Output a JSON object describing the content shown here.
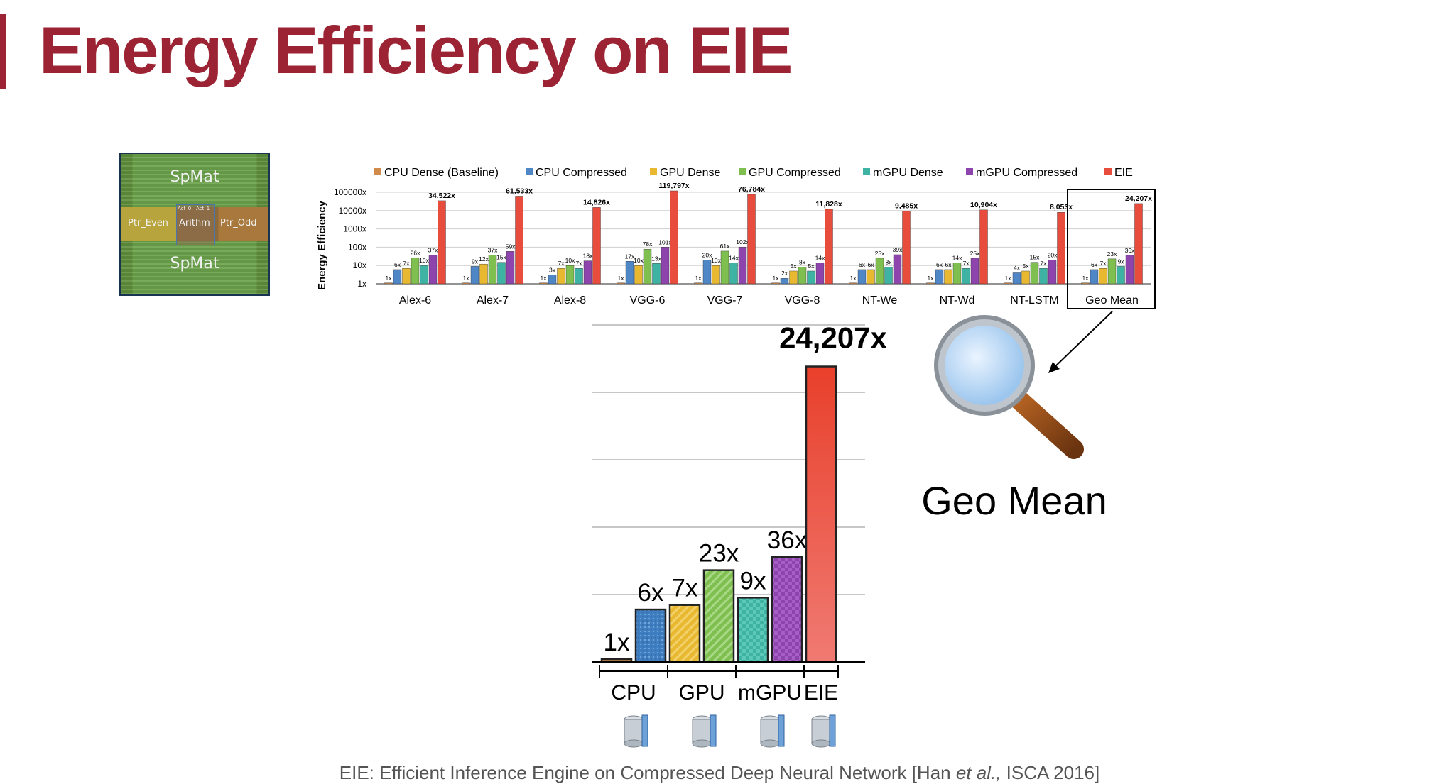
{
  "slide": {
    "title": "Energy Efficiency on EIE",
    "footer": {
      "prefix": "EIE: Efficient Inference Engine on Compressed Deep Neural Network [Han ",
      "italic": "et al.,",
      "suffix": " ISCA 2016]"
    },
    "chip_labels": {
      "spmat_top": "SpMat",
      "spmat_bottom": "SpMat",
      "ptr_even": "Ptr_Even",
      "arith": "Arithm",
      "ptr_odd": "Ptr_Odd",
      "act0": "Act_0",
      "act1": "Act_1"
    },
    "zoom_label": "Geo Mean"
  },
  "colors": {
    "accent": "#9b2333",
    "cpu_dense": "#d08a4a",
    "cpu_compressed": "#4f86c6",
    "gpu_dense": "#e8b930",
    "gpu_compressed": "#7fbf4f",
    "mgpu_dense": "#3fb3a3",
    "mgpu_compressed": "#8e44ad",
    "eie": "#e74c3c"
  },
  "chart_data": [
    {
      "type": "bar",
      "ylabel": "Energy Efficiency",
      "scale": "log",
      "yticks": [
        "1x",
        "10x",
        "100x",
        "1000x",
        "10000x",
        "100000x"
      ],
      "ylim": [
        1,
        100000
      ],
      "legend_position": "top",
      "categories": [
        "Alex-6",
        "Alex-7",
        "Alex-8",
        "VGG-6",
        "VGG-7",
        "VGG-8",
        "NT-We",
        "NT-Wd",
        "NT-LSTM",
        "Geo Mean"
      ],
      "series": [
        {
          "name": "CPU Dense (Baseline)",
          "color_key": "cpu_dense",
          "values": [
            1,
            1,
            1,
            1,
            1,
            1,
            1,
            1,
            1,
            1
          ],
          "labels": [
            "1x",
            "1x",
            "1x",
            "1x",
            "1x",
            "1x",
            "1x",
            "1x",
            "1x",
            "1x"
          ]
        },
        {
          "name": "CPU Compressed",
          "color_key": "cpu_compressed",
          "values": [
            6,
            9,
            3,
            17,
            20,
            2,
            6,
            6,
            4,
            6
          ],
          "labels": [
            "6x",
            "9x",
            "3x",
            "17x",
            "20x",
            "2x",
            "6x",
            "6x",
            "4x",
            "6x"
          ]
        },
        {
          "name": "GPU Dense",
          "color_key": "gpu_dense",
          "values": [
            7,
            12,
            7,
            10,
            10,
            5,
            6,
            6,
            5,
            7
          ],
          "labels": [
            "7x",
            "12x",
            "7x",
            "10x",
            "10x",
            "5x",
            "6x",
            "6x",
            "5x",
            "7x"
          ]
        },
        {
          "name": "GPU Compressed",
          "color_key": "gpu_compressed",
          "values": [
            26,
            37,
            10,
            78,
            61,
            8,
            25,
            14,
            15,
            23
          ],
          "labels": [
            "26x",
            "37x",
            "10x",
            "78x",
            "61x",
            "8x",
            "25x",
            "14x",
            "15x",
            "23x"
          ]
        },
        {
          "name": "mGPU Dense",
          "color_key": "mgpu_dense",
          "values": [
            10,
            15,
            7,
            13,
            14,
            5,
            8,
            7,
            7,
            9
          ],
          "labels": [
            "10x",
            "15x",
            "7x",
            "13x",
            "14x",
            "5x",
            "8x",
            "7x",
            "7x",
            "9x"
          ]
        },
        {
          "name": "mGPU Compressed",
          "color_key": "mgpu_compressed",
          "values": [
            37,
            59,
            18,
            101,
            102,
            14,
            39,
            25,
            20,
            36
          ],
          "labels": [
            "37x",
            "59x",
            "18x",
            "101x",
            "102x",
            "14x",
            "39x",
            "25x",
            "20x",
            "36x"
          ]
        },
        {
          "name": "EIE",
          "color_key": "eie",
          "values": [
            34522,
            61533,
            14826,
            119797,
            76784,
            11828,
            9485,
            10904,
            8053,
            24207
          ],
          "labels": [
            "34,522x",
            "61,533x",
            "14,826x",
            "119,797x",
            "76,784x",
            "11,828x",
            "9,485x",
            "10,904x",
            "8,053x",
            "24,207x"
          ]
        }
      ]
    },
    {
      "type": "bar",
      "subtitle": "Geo Mean",
      "scale": "log",
      "groups": [
        {
          "label": "CPU",
          "bar_count": 2
        },
        {
          "label": "GPU",
          "bar_count": 2
        },
        {
          "label": "mGPU",
          "bar_count": 2
        },
        {
          "label": "EIE",
          "bar_count": 1
        }
      ],
      "bars": [
        {
          "series": "CPU Dense (Baseline)",
          "value": 1,
          "label": "1x",
          "color_key": "cpu_dense"
        },
        {
          "series": "CPU Compressed",
          "value": 6,
          "label": "6x",
          "color_key": "cpu_compressed"
        },
        {
          "series": "GPU Dense",
          "value": 7,
          "label": "7x",
          "color_key": "gpu_dense"
        },
        {
          "series": "GPU Compressed",
          "value": 23,
          "label": "23x",
          "color_key": "gpu_compressed"
        },
        {
          "series": "mGPU Dense",
          "value": 9,
          "label": "9x",
          "color_key": "mgpu_dense"
        },
        {
          "series": "mGPU Compressed",
          "value": 36,
          "label": "36x",
          "color_key": "mgpu_compressed"
        },
        {
          "series": "EIE",
          "value": 24207,
          "label": "24,207x",
          "color_key": "eie"
        }
      ]
    }
  ]
}
